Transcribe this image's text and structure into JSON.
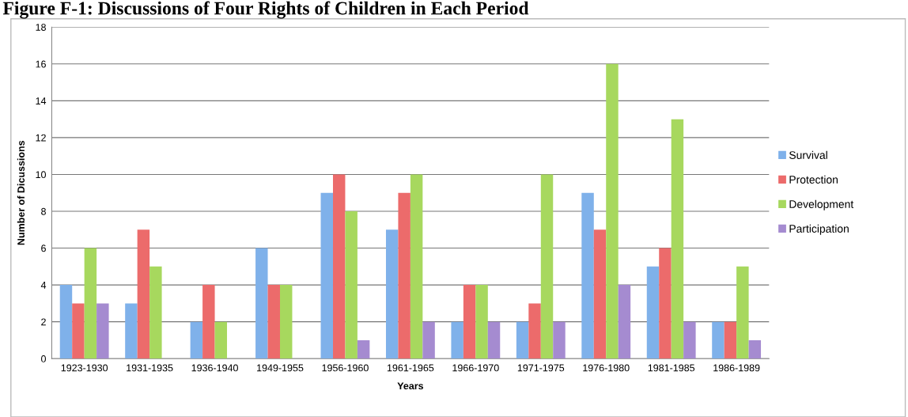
{
  "chart_data": {
    "type": "bar",
    "title": "Figure F-1: Discussions of Four Rights of Children in Each Period",
    "xlabel": "Years",
    "ylabel": "Number of Dicussions",
    "categories": [
      "1923-1930",
      "1931-1935",
      "1936-1940",
      "1949-1955",
      "1956-1960",
      "1961-1965",
      "1966-1970",
      "1971-1975",
      "1976-1980",
      "1981-1985",
      "1986-1989"
    ],
    "series": [
      {
        "name": "Survival",
        "color": "#7fb1ea",
        "values": [
          4,
          3,
          2,
          6,
          9,
          7,
          2,
          2,
          9,
          5,
          2
        ]
      },
      {
        "name": "Protection",
        "color": "#ec6b6b",
        "values": [
          3,
          7,
          4,
          4,
          10,
          9,
          4,
          3,
          7,
          6,
          2
        ]
      },
      {
        "name": "Development",
        "color": "#a7d85e",
        "values": [
          6,
          5,
          2,
          4,
          8,
          10,
          4,
          10,
          16,
          13,
          5
        ]
      },
      {
        "name": "Participation",
        "color": "#a58bd0",
        "values": [
          3,
          0,
          0,
          0,
          1,
          2,
          2,
          2,
          4,
          2,
          1
        ]
      }
    ],
    "ylim": [
      0,
      18
    ],
    "yticks": [
      0,
      2,
      4,
      6,
      8,
      10,
      12,
      14,
      16,
      18
    ],
    "grid": "y",
    "legend": "right"
  }
}
